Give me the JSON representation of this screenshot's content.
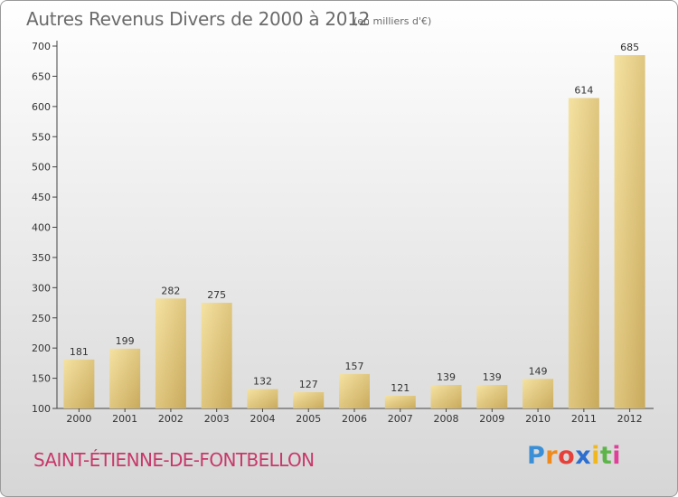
{
  "title": "Autres Revenus Divers de 2000 à 2012",
  "subtitle": "(en milliers d'€)",
  "commune": "SAINT-ÉTIENNE-DE-FONTBELLON",
  "logo": {
    "letters": [
      "P",
      "r",
      "o",
      "x",
      "i",
      "t",
      "i"
    ],
    "colors": [
      "#3a8fd6",
      "#f08a1c",
      "#e5403a",
      "#2c6fcf",
      "#f0b81e",
      "#5db54a",
      "#e0409a"
    ]
  },
  "colors": {
    "bar_light": "#f5e2a2",
    "bar_dark": "#c9aa5c",
    "title_text": "#6b6b6b",
    "commune_text": "#c8386a"
  },
  "chart_data": {
    "type": "bar",
    "categories": [
      "2000",
      "2001",
      "2002",
      "2003",
      "2004",
      "2005",
      "2006",
      "2007",
      "2008",
      "2009",
      "2010",
      "2011",
      "2012"
    ],
    "values": [
      181,
      199,
      282,
      275,
      132,
      127,
      157,
      121,
      139,
      139,
      149,
      614,
      685
    ],
    "ylim": [
      100,
      700
    ],
    "yticks": [
      100,
      150,
      200,
      250,
      300,
      350,
      400,
      450,
      500,
      550,
      600,
      650,
      700
    ],
    "grid": false,
    "legend": "none"
  }
}
